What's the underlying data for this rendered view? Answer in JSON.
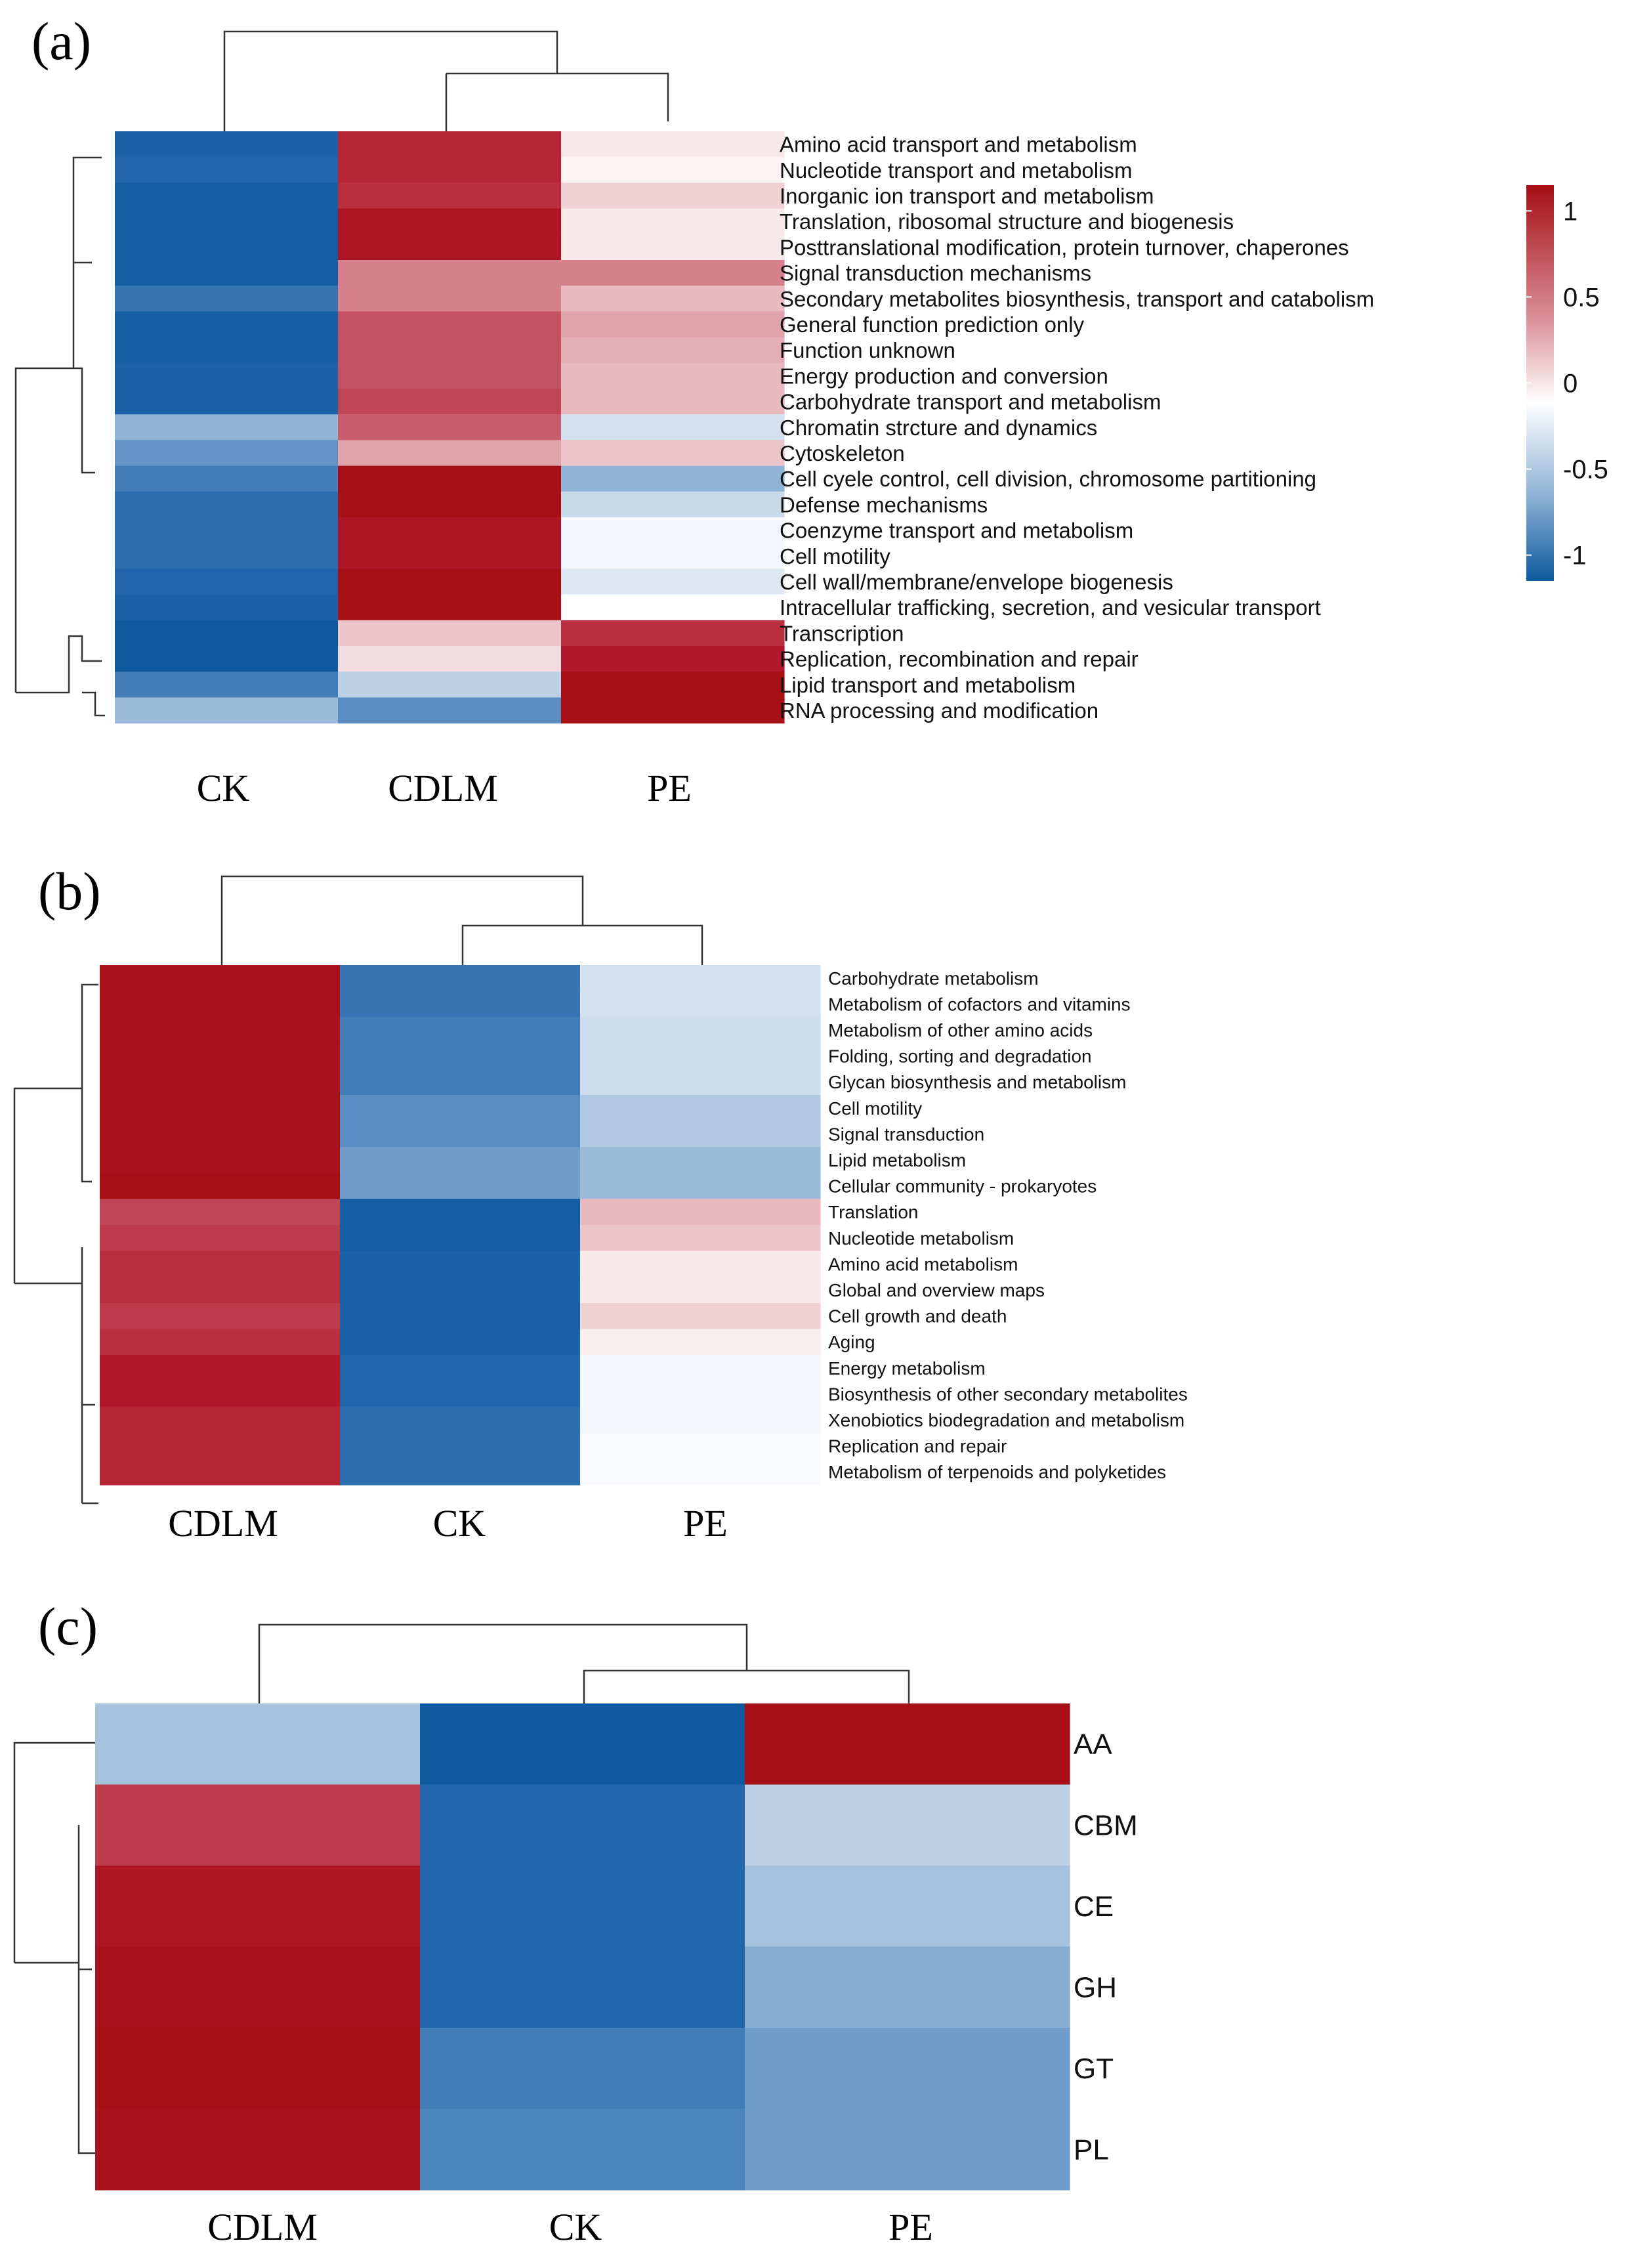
{
  "legend": {
    "ticks": [
      1,
      0.5,
      0,
      -0.5,
      -1
    ],
    "tick_labels": [
      "1",
      "0.5",
      "0",
      "-0.5",
      "-1"
    ],
    "colors": {
      "high": "#b2182b",
      "mid": "#ffffff",
      "low": "#2166ac",
      "max": "#a50f15",
      "min": "#0d5a9e"
    }
  },
  "chart_data": [
    {
      "type": "heatmap",
      "panel": "(a)",
      "title": "",
      "columns": [
        "CK",
        "CDLM",
        "PE"
      ],
      "rows": [
        "Amino acid transport and metabolism",
        "Nucleotide transport and metabolism",
        "Inorganic ion transport and metabolism",
        "Translation, ribosomal structure and biogenesis",
        "Posttranslational modification, protein turnover, chaperones",
        "Signal transduction mechanisms",
        "Secondary metabolites biosynthesis, transport and catabolism",
        "General function prediction only",
        "Function unknown",
        "Energy production and conversion",
        "Carbohydrate transport and metabolism",
        "Chromatin strcture and dynamics",
        "Cytoskeleton",
        "Cell cyele control, cell division, chromosome partitioning",
        "Defense mechanisms",
        "Coenzyme transport and metabolism",
        "Cell motility",
        "Cell wall/membrane/envelope biogenesis",
        "Intracellular trafficking, secretion, and vesicular transport",
        "Transcription",
        "Replication, recombination and repair",
        "Lipid transport and metabolism",
        "RNA processing and modification"
      ],
      "values": [
        [
          -1.05,
          0.95,
          0.1
        ],
        [
          -1.0,
          0.95,
          0.05
        ],
        [
          -1.1,
          0.9,
          0.2
        ],
        [
          -1.1,
          1.05,
          0.1
        ],
        [
          -1.1,
          1.05,
          0.1
        ],
        [
          -1.1,
          0.55,
          0.55
        ],
        [
          -0.9,
          0.55,
          0.3
        ],
        [
          -1.1,
          0.75,
          0.4
        ],
        [
          -1.1,
          0.75,
          0.35
        ],
        [
          -1.05,
          0.75,
          0.3
        ],
        [
          -1.05,
          0.8,
          0.3
        ],
        [
          -0.5,
          0.7,
          -0.2
        ],
        [
          -0.7,
          0.4,
          0.25
        ],
        [
          -0.85,
          1.15,
          -0.5
        ],
        [
          -0.95,
          1.15,
          -0.25
        ],
        [
          -0.95,
          1.05,
          -0.05
        ],
        [
          -0.95,
          1.05,
          -0.05
        ],
        [
          -1.0,
          1.15,
          -0.15
        ],
        [
          -1.05,
          1.15,
          0.0
        ],
        [
          -1.15,
          0.25,
          0.9
        ],
        [
          -1.15,
          0.15,
          1.0
        ],
        [
          -0.85,
          -0.3,
          1.15
        ],
        [
          -0.45,
          -0.75,
          1.15
        ]
      ],
      "vmin": -1.15,
      "vmax": 1.15
    },
    {
      "type": "heatmap",
      "panel": "(b)",
      "title": "",
      "columns": [
        "CDLM",
        "CK",
        "PE"
      ],
      "rows": [
        "Carbohydrate metabolism",
        "Metabolism of cofactors and vitamins",
        "Metabolism of other amino acids",
        "Folding, sorting and degradation",
        "Glycan biosynthesis and metabolism",
        "Cell motility",
        "Signal transduction",
        "Lipid metabolism",
        "Cellular community - prokaryotes",
        "Translation",
        "Nucleotide metabolism",
        "Amino acid metabolism",
        "Global and overview maps",
        "Cell growth and death",
        "Aging",
        "Energy metabolism",
        "Biosynthesis of other secondary metabolites",
        "Xenobiotics biodegradation and metabolism",
        "Replication and repair",
        "Metabolism of terpenoids and polyketides"
      ],
      "values": [
        [
          1.1,
          -0.9,
          -0.2
        ],
        [
          1.1,
          -0.9,
          -0.2
        ],
        [
          1.1,
          -0.85,
          -0.22
        ],
        [
          1.1,
          -0.85,
          -0.22
        ],
        [
          1.1,
          -0.85,
          -0.22
        ],
        [
          1.1,
          -0.75,
          -0.35
        ],
        [
          1.1,
          -0.75,
          -0.35
        ],
        [
          1.1,
          -0.65,
          -0.45
        ],
        [
          1.15,
          -0.65,
          -0.45
        ],
        [
          0.8,
          -1.1,
          0.3
        ],
        [
          0.85,
          -1.1,
          0.25
        ],
        [
          0.9,
          -1.05,
          0.1
        ],
        [
          0.9,
          -1.05,
          0.1
        ],
        [
          0.85,
          -1.05,
          0.2
        ],
        [
          0.9,
          -1.05,
          0.08
        ],
        [
          1.0,
          -1.0,
          -0.05
        ],
        [
          1.0,
          -1.0,
          -0.05
        ],
        [
          0.95,
          -0.95,
          -0.05
        ],
        [
          0.95,
          -0.95,
          -0.03
        ],
        [
          0.95,
          -0.95,
          -0.03
        ]
      ],
      "vmin": -1.15,
      "vmax": 1.15
    },
    {
      "type": "heatmap",
      "panel": "(c)",
      "title": "",
      "columns": [
        "CDLM",
        "CK",
        "PE"
      ],
      "rows": [
        "AA",
        "CBM",
        "CE",
        "GH",
        "GT",
        "PL"
      ],
      "values": [
        [
          -0.4,
          -1.15,
          1.15
        ],
        [
          0.85,
          -1.0,
          -0.3
        ],
        [
          1.05,
          -1.0,
          -0.4
        ],
        [
          1.1,
          -1.0,
          -0.55
        ],
        [
          1.15,
          -0.85,
          -0.65
        ],
        [
          1.1,
          -0.8,
          -0.65
        ]
      ],
      "vmin": -1.15,
      "vmax": 1.15
    }
  ]
}
